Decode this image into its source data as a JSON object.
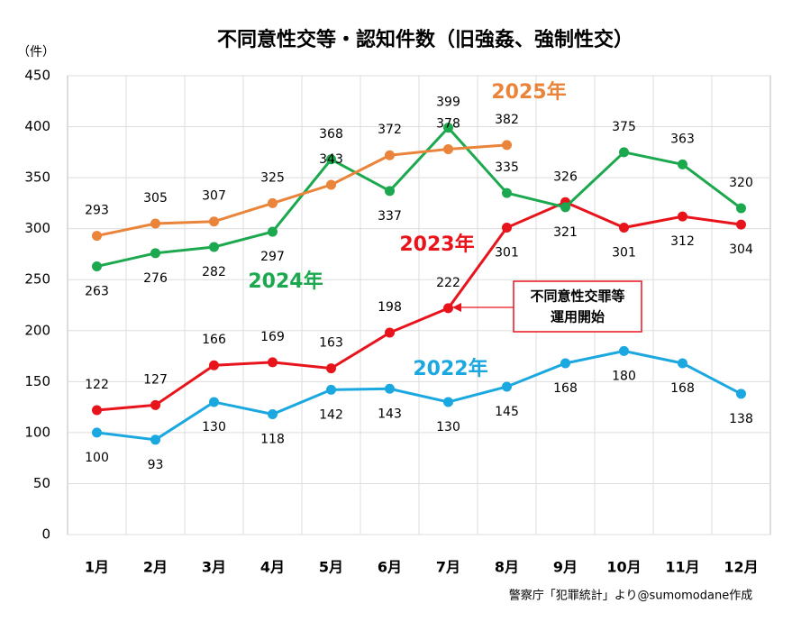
{
  "chart_data": {
    "type": "line",
    "title": "不同意性交等・認知件数（旧強姦、強制性交）",
    "y_unit": "（件）",
    "categories": [
      "1月",
      "2月",
      "3月",
      "4月",
      "5月",
      "6月",
      "7月",
      "8月",
      "9月",
      "10月",
      "11月",
      "12月"
    ],
    "series": [
      {
        "name": "2022年",
        "color": "#1ba8e0",
        "values": [
          100,
          93,
          130,
          118,
          142,
          143,
          130,
          145,
          168,
          180,
          168,
          138
        ]
      },
      {
        "name": "2023年",
        "color": "#e8141c",
        "values": [
          122,
          127,
          166,
          169,
          163,
          198,
          222,
          301,
          326,
          301,
          312,
          304
        ]
      },
      {
        "name": "2024年",
        "color": "#1ba84e",
        "values": [
          263,
          276,
          282,
          297,
          368,
          337,
          399,
          335,
          321,
          375,
          363,
          320
        ]
      },
      {
        "name": "2025年",
        "color": "#e9843a",
        "values": [
          293,
          305,
          307,
          325,
          343,
          372,
          378,
          382,
          null,
          null,
          null,
          null
        ]
      }
    ],
    "ylim": [
      0,
      450
    ],
    "yticks": [
      0,
      50,
      100,
      150,
      200,
      250,
      300,
      350,
      400,
      450
    ],
    "grid": true,
    "annotation": [
      "不同意性交罪等",
      "運用開始"
    ],
    "source": "警察庁「犯罪統計」より@sumomodane作成"
  }
}
